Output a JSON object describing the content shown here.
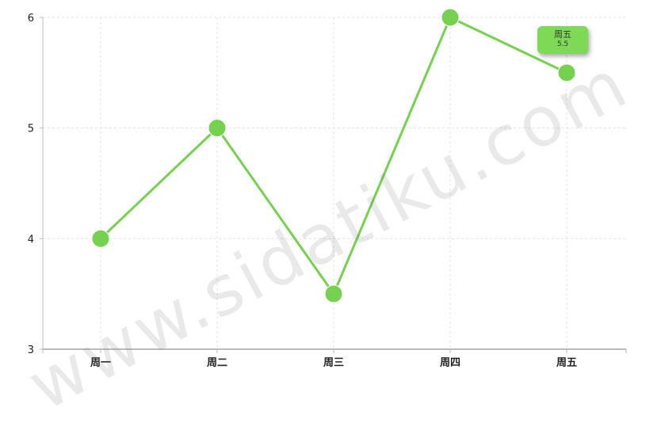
{
  "chart_data": {
    "type": "line",
    "categories": [
      "周一",
      "周二",
      "周三",
      "周四",
      "周五"
    ],
    "series": [
      {
        "values": [
          4,
          5,
          3.5,
          6,
          5.5
        ],
        "color": "#77d150"
      }
    ],
    "y_ticks": [
      "3",
      "4",
      "5",
      "6"
    ],
    "ylim": [
      3,
      6
    ],
    "grid": true,
    "tooltip": {
      "title": "周五",
      "value": "5.5"
    }
  },
  "watermark": "www.sidatiku.com"
}
